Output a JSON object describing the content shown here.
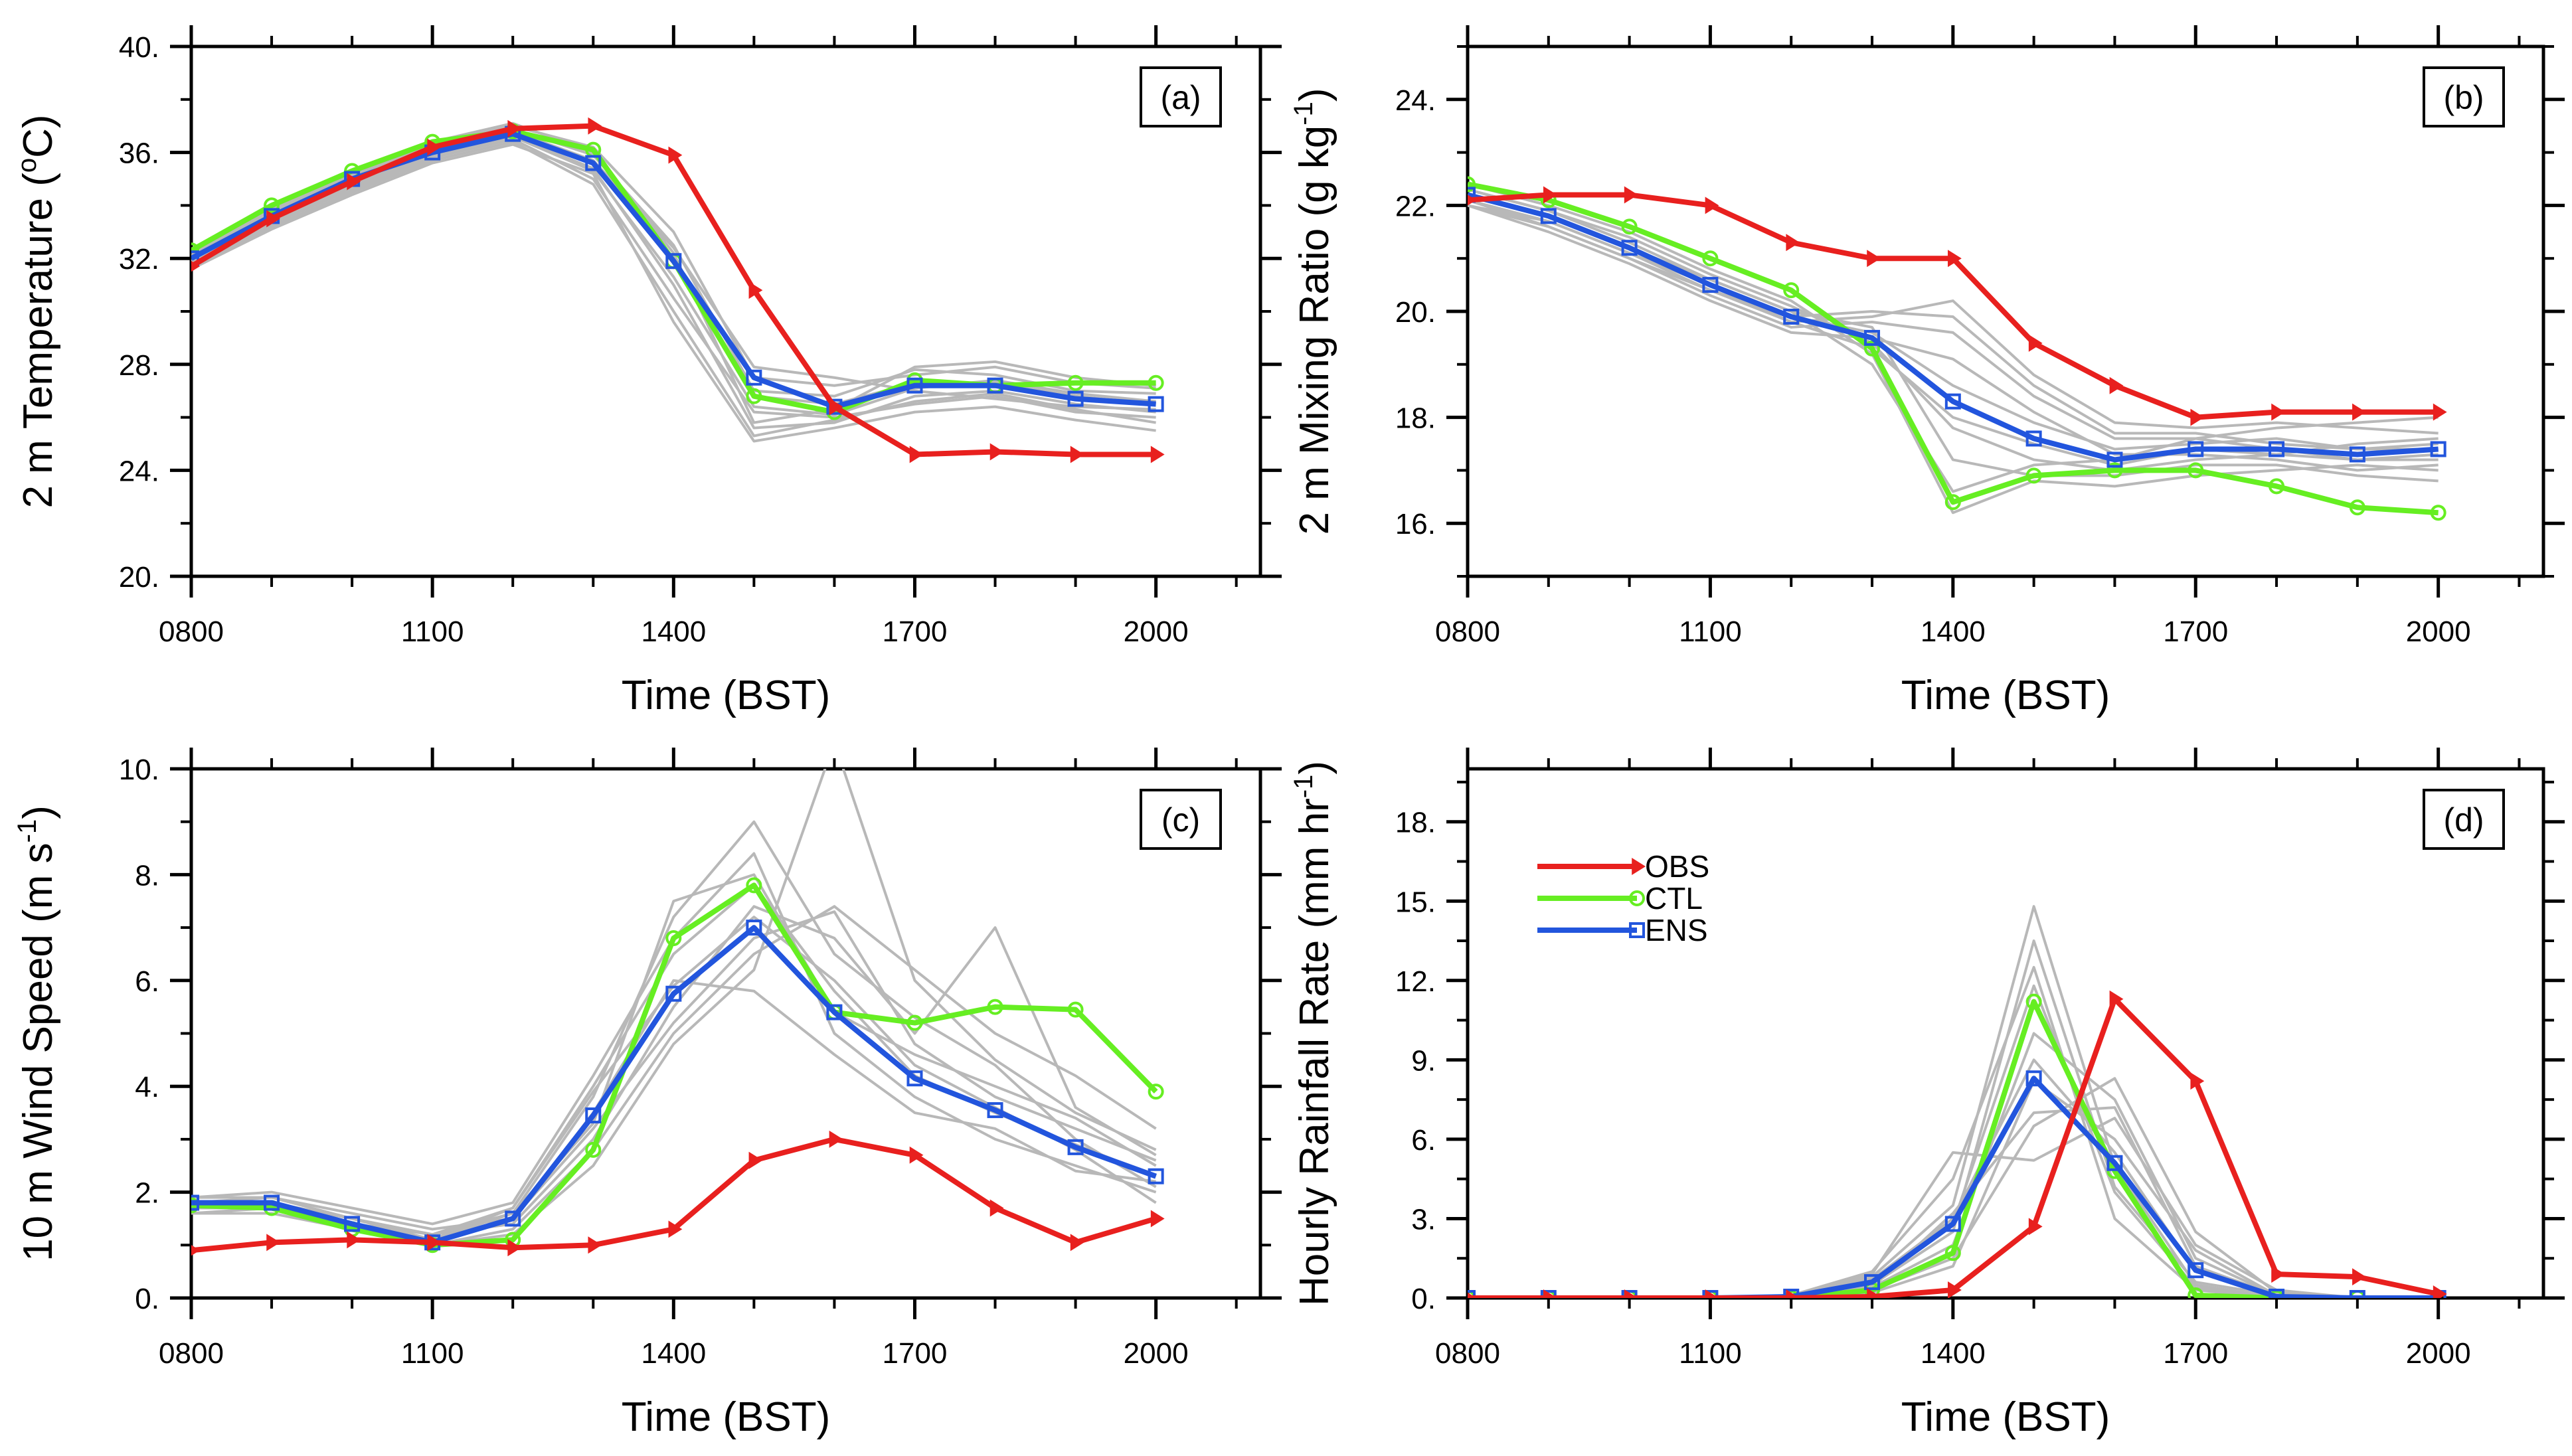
{
  "colors": {
    "obs": "#e8201e",
    "ctl": "#66ee22",
    "ens": "#2255dd",
    "members": "#b8b8b8",
    "axis": "#000000"
  },
  "legend": {
    "obs": "OBS",
    "ctl": "CTL",
    "ens": "ENS"
  },
  "chart_data": [
    {
      "type": "line",
      "panel": "(a)",
      "xlabel": "Time (BST)",
      "ylabel": "2 m Temperature (°C)",
      "ylabel_parts": {
        "main": "2 m Temperature (",
        "sup": "o",
        "rest": "C)"
      },
      "x": [
        800,
        900,
        1000,
        1100,
        1200,
        1300,
        1400,
        1500,
        1600,
        1700,
        1800,
        1900,
        2000
      ],
      "xlim": [
        800,
        2130
      ],
      "xticks": [
        "0800",
        "1100",
        "1400",
        "1700",
        "2000"
      ],
      "ylim": [
        20,
        40
      ],
      "yticks": [
        "20.",
        "24.",
        "28.",
        "32.",
        "36.",
        "40."
      ],
      "series": [
        {
          "name": "OBS",
          "values": [
            31.7,
            33.5,
            34.9,
            36.2,
            36.9,
            37.0,
            35.9,
            30.8,
            26.4,
            24.6,
            24.7,
            24.6,
            24.6
          ]
        },
        {
          "name": "CTL",
          "values": [
            32.3,
            34.0,
            35.3,
            36.4,
            36.8,
            36.1,
            31.9,
            26.8,
            26.2,
            27.4,
            27.2,
            27.3,
            27.3
          ]
        },
        {
          "name": "ENS",
          "values": [
            32.0,
            33.6,
            35.0,
            36.0,
            36.7,
            35.6,
            31.9,
            27.5,
            26.4,
            27.2,
            27.2,
            26.7,
            26.5
          ]
        }
      ],
      "members": [
        [
          31.8,
          33.3,
          34.6,
          35.8,
          36.5,
          35.0,
          30.5,
          26.2,
          26.0,
          26.5,
          26.8,
          26.2,
          26.0
        ],
        [
          32.1,
          33.8,
          35.1,
          36.2,
          36.9,
          35.9,
          32.5,
          27.0,
          26.8,
          27.8,
          27.6,
          27.0,
          26.9
        ],
        [
          31.9,
          33.5,
          34.8,
          35.9,
          36.6,
          35.4,
          31.0,
          25.6,
          25.8,
          26.8,
          27.0,
          26.5,
          26.2
        ],
        [
          32.2,
          33.9,
          35.2,
          36.3,
          37.0,
          36.2,
          33.0,
          27.5,
          27.2,
          27.6,
          27.9,
          27.3,
          27.1
        ],
        [
          31.7,
          33.2,
          34.5,
          35.7,
          36.4,
          34.8,
          30.0,
          25.3,
          25.9,
          26.6,
          26.9,
          26.3,
          25.8
        ],
        [
          32.0,
          33.6,
          34.9,
          36.0,
          36.7,
          35.6,
          31.8,
          26.8,
          26.5,
          27.3,
          27.3,
          26.8,
          26.5
        ],
        [
          32.3,
          34.0,
          35.3,
          36.4,
          37.1,
          36.0,
          32.2,
          25.8,
          26.3,
          27.9,
          28.1,
          27.5,
          27.2
        ],
        [
          31.6,
          33.1,
          34.4,
          35.6,
          36.3,
          35.2,
          29.6,
          25.1,
          25.6,
          26.2,
          26.4,
          25.9,
          25.5
        ],
        [
          32.0,
          33.7,
          35.0,
          36.1,
          36.8,
          35.7,
          32.4,
          27.9,
          27.5,
          27.0,
          26.7,
          26.4,
          26.3
        ],
        [
          31.8,
          33.4,
          34.7,
          35.9,
          36.6,
          35.3,
          31.3,
          26.4,
          26.1,
          27.1,
          27.4,
          26.9,
          26.6
        ]
      ]
    },
    {
      "type": "line",
      "panel": "(b)",
      "xlabel": "Time (BST)",
      "ylabel": "2 m Mixing Ratio (g kg⁻¹)",
      "ylabel_parts": {
        "main": "2 m Mixing Ratio (g kg",
        "sup": "-1",
        "rest": ")"
      },
      "x": [
        800,
        900,
        1000,
        1100,
        1200,
        1300,
        1400,
        1500,
        1600,
        1700,
        1800,
        1900,
        2000
      ],
      "xlim": [
        800,
        2130
      ],
      "xticks": [
        "0800",
        "1100",
        "1400",
        "1700",
        "2000"
      ],
      "ylim": [
        15,
        25
      ],
      "yticks": [
        "16.",
        "18.",
        "20.",
        "22.",
        "24."
      ],
      "series": [
        {
          "name": "OBS",
          "values": [
            22.1,
            22.2,
            22.2,
            22.0,
            21.3,
            21.0,
            21.0,
            19.4,
            18.6,
            18.0,
            18.1,
            18.1,
            18.1
          ]
        },
        {
          "name": "CTL",
          "values": [
            22.4,
            22.1,
            21.6,
            21.0,
            20.4,
            19.3,
            16.4,
            16.9,
            17.0,
            17.0,
            16.7,
            16.3,
            16.2
          ]
        },
        {
          "name": "ENS",
          "values": [
            22.2,
            21.8,
            21.2,
            20.5,
            19.9,
            19.5,
            18.3,
            17.6,
            17.2,
            17.4,
            17.4,
            17.3,
            17.4
          ]
        }
      ],
      "members": [
        [
          22.0,
          21.6,
          21.0,
          20.3,
          19.7,
          19.8,
          19.6,
          18.4,
          17.6,
          17.6,
          17.4,
          17.2,
          17.3
        ],
        [
          22.3,
          21.9,
          21.4,
          20.7,
          20.1,
          19.4,
          17.8,
          17.2,
          17.0,
          17.2,
          17.3,
          17.5,
          17.6
        ],
        [
          22.1,
          21.7,
          21.1,
          20.4,
          19.8,
          19.9,
          20.2,
          18.8,
          17.9,
          17.8,
          17.9,
          17.8,
          17.7
        ],
        [
          22.4,
          22.0,
          21.5,
          20.8,
          20.2,
          19.2,
          16.2,
          16.8,
          16.7,
          16.9,
          17.0,
          17.1,
          17.0
        ],
        [
          22.2,
          21.8,
          21.2,
          20.5,
          19.9,
          19.6,
          18.6,
          17.9,
          17.4,
          17.5,
          17.6,
          17.4,
          17.5
        ],
        [
          22.0,
          21.5,
          20.9,
          20.2,
          19.6,
          19.5,
          19.1,
          18.1,
          17.3,
          17.3,
          17.2,
          17.0,
          17.1
        ],
        [
          22.3,
          21.9,
          21.3,
          20.6,
          20.0,
          19.0,
          16.6,
          17.1,
          17.2,
          17.6,
          17.8,
          17.9,
          18.0
        ],
        [
          22.1,
          21.6,
          21.0,
          20.4,
          19.9,
          20.0,
          19.9,
          18.6,
          17.7,
          17.7,
          17.5,
          17.4,
          17.4
        ],
        [
          22.2,
          21.8,
          21.2,
          20.6,
          20.0,
          19.7,
          17.2,
          16.9,
          16.9,
          17.1,
          17.1,
          16.9,
          16.8
        ],
        [
          22.0,
          21.7,
          21.1,
          20.5,
          19.8,
          19.3,
          18.0,
          17.5,
          17.1,
          17.4,
          17.3,
          17.2,
          17.2
        ]
      ]
    },
    {
      "type": "line",
      "panel": "(c)",
      "xlabel": "Time (BST)",
      "ylabel": "10 m Wind Speed (m s⁻¹)",
      "ylabel_parts": {
        "main": "10 m Wind Speed (m s",
        "sup": "-1",
        "rest": ")"
      },
      "x": [
        800,
        900,
        1000,
        1100,
        1200,
        1300,
        1400,
        1500,
        1600,
        1700,
        1800,
        1900,
        2000
      ],
      "xlim": [
        800,
        2130
      ],
      "xticks": [
        "0800",
        "1100",
        "1400",
        "1700",
        "2000"
      ],
      "ylim": [
        0,
        10
      ],
      "yticks": [
        "0.",
        "2.",
        "4.",
        "6.",
        "8.",
        "10."
      ],
      "series": [
        {
          "name": "OBS",
          "values": [
            0.9,
            1.05,
            1.1,
            1.05,
            0.95,
            1.0,
            1.3,
            2.6,
            3.0,
            2.7,
            1.7,
            1.05,
            1.5
          ]
        },
        {
          "name": "CTL",
          "values": [
            1.75,
            1.7,
            1.3,
            1.0,
            1.1,
            2.8,
            6.8,
            7.8,
            5.4,
            5.2,
            5.5,
            5.45,
            3.9
          ]
        },
        {
          "name": "ENS",
          "values": [
            1.8,
            1.8,
            1.4,
            1.05,
            1.5,
            3.45,
            5.75,
            7.0,
            5.4,
            4.15,
            3.55,
            2.85,
            2.3
          ]
        }
      ],
      "members": [
        [
          1.7,
          1.8,
          1.5,
          1.2,
          1.7,
          4.0,
          6.5,
          7.8,
          5.8,
          4.2,
          3.5,
          2.9,
          2.3
        ],
        [
          1.9,
          1.9,
          1.6,
          1.3,
          1.5,
          3.2,
          5.2,
          6.8,
          7.3,
          4.8,
          3.8,
          3.2,
          2.6
        ],
        [
          1.6,
          1.7,
          1.3,
          1.0,
          1.2,
          2.5,
          4.8,
          6.2,
          10.5,
          6.0,
          4.5,
          3.5,
          2.8
        ],
        [
          1.8,
          1.7,
          1.4,
          1.1,
          1.6,
          3.8,
          7.2,
          9.0,
          6.5,
          5.3,
          4.4,
          3.0,
          2.1
        ],
        [
          1.7,
          1.8,
          1.5,
          1.2,
          1.4,
          3.0,
          5.5,
          7.4,
          6.8,
          5.0,
          7.0,
          3.6,
          2.7
        ],
        [
          1.9,
          2.0,
          1.7,
          1.4,
          1.8,
          4.2,
          6.8,
          8.4,
          5.0,
          3.8,
          3.0,
          2.5,
          2.0
        ],
        [
          1.6,
          1.6,
          1.3,
          1.0,
          1.3,
          2.8,
          5.0,
          6.5,
          7.4,
          6.2,
          5.0,
          4.2,
          3.2
        ],
        [
          1.8,
          1.9,
          1.5,
          1.1,
          1.5,
          3.5,
          6.0,
          5.8,
          4.6,
          3.5,
          3.2,
          2.4,
          2.2
        ],
        [
          1.7,
          1.7,
          1.4,
          1.2,
          1.6,
          3.3,
          7.5,
          8.0,
          5.4,
          4.6,
          4.0,
          3.4,
          2.5
        ],
        [
          1.8,
          1.8,
          1.5,
          1.1,
          1.7,
          3.9,
          5.9,
          7.2,
          6.0,
          4.4,
          3.6,
          2.8,
          1.8
        ]
      ]
    },
    {
      "type": "line",
      "panel": "(d)",
      "xlabel": "Time (BST)",
      "ylabel": "Hourly Rainfall Rate (mm hr⁻¹)",
      "ylabel_parts": {
        "main": "Hourly Rainfall Rate (mm hr",
        "sup": "-1",
        "rest": ")"
      },
      "x": [
        800,
        900,
        1000,
        1100,
        1200,
        1300,
        1400,
        1500,
        1600,
        1700,
        1800,
        1900,
        2000
      ],
      "xlim": [
        800,
        2130
      ],
      "xticks": [
        "0800",
        "1100",
        "1400",
        "1700",
        "2000"
      ],
      "ylim": [
        0,
        20
      ],
      "yticks": [
        "0.",
        "3.",
        "6.",
        "9.",
        "12.",
        "15.",
        "18."
      ],
      "series": [
        {
          "name": "OBS",
          "values": [
            0.0,
            0.0,
            0.0,
            0.0,
            0.0,
            0.05,
            0.3,
            2.7,
            11.3,
            8.2,
            0.9,
            0.8,
            0.15
          ]
        },
        {
          "name": "CTL",
          "values": [
            0.0,
            0.0,
            0.0,
            0.0,
            0.0,
            0.3,
            1.7,
            11.2,
            4.8,
            0.1,
            0.0,
            0.0,
            0.0
          ]
        },
        {
          "name": "ENS",
          "values": [
            0.0,
            0.0,
            0.0,
            0.0,
            0.05,
            0.6,
            2.8,
            8.3,
            5.1,
            1.05,
            0.05,
            0.0,
            0.0
          ]
        }
      ],
      "members": [
        [
          0.0,
          0.0,
          0.0,
          0.0,
          0.1,
          0.8,
          3.5,
          14.8,
          5.0,
          0.5,
          0.0,
          0.0,
          0.0
        ],
        [
          0.0,
          0.0,
          0.0,
          0.0,
          0.0,
          0.4,
          2.0,
          10.0,
          7.5,
          1.5,
          0.1,
          0.0,
          0.0
        ],
        [
          0.0,
          0.0,
          0.0,
          0.0,
          0.1,
          1.0,
          4.5,
          12.5,
          3.0,
          0.3,
          0.0,
          0.0,
          0.0
        ],
        [
          0.0,
          0.0,
          0.0,
          0.0,
          0.0,
          0.3,
          1.5,
          6.5,
          8.3,
          2.5,
          0.2,
          0.0,
          0.0
        ],
        [
          0.0,
          0.0,
          0.0,
          0.0,
          0.1,
          0.7,
          3.0,
          9.0,
          5.5,
          1.0,
          0.0,
          0.0,
          0.0
        ],
        [
          0.0,
          0.0,
          0.0,
          0.0,
          0.0,
          0.5,
          2.5,
          13.5,
          4.2,
          0.6,
          0.1,
          0.0,
          0.0
        ],
        [
          0.0,
          0.0,
          0.0,
          0.0,
          0.1,
          0.9,
          5.5,
          5.2,
          6.8,
          2.0,
          0.3,
          0.0,
          0.0
        ],
        [
          0.0,
          0.0,
          0.0,
          0.0,
          0.0,
          0.2,
          1.2,
          8.2,
          6.0,
          1.8,
          0.1,
          0.0,
          0.0
        ],
        [
          0.0,
          0.0,
          0.0,
          0.0,
          0.1,
          0.6,
          2.8,
          11.8,
          4.0,
          0.4,
          0.0,
          0.0,
          0.0
        ],
        [
          0.0,
          0.0,
          0.0,
          0.0,
          0.0,
          0.4,
          3.2,
          7.0,
          7.2,
          1.2,
          0.1,
          0.0,
          0.0
        ]
      ]
    }
  ]
}
